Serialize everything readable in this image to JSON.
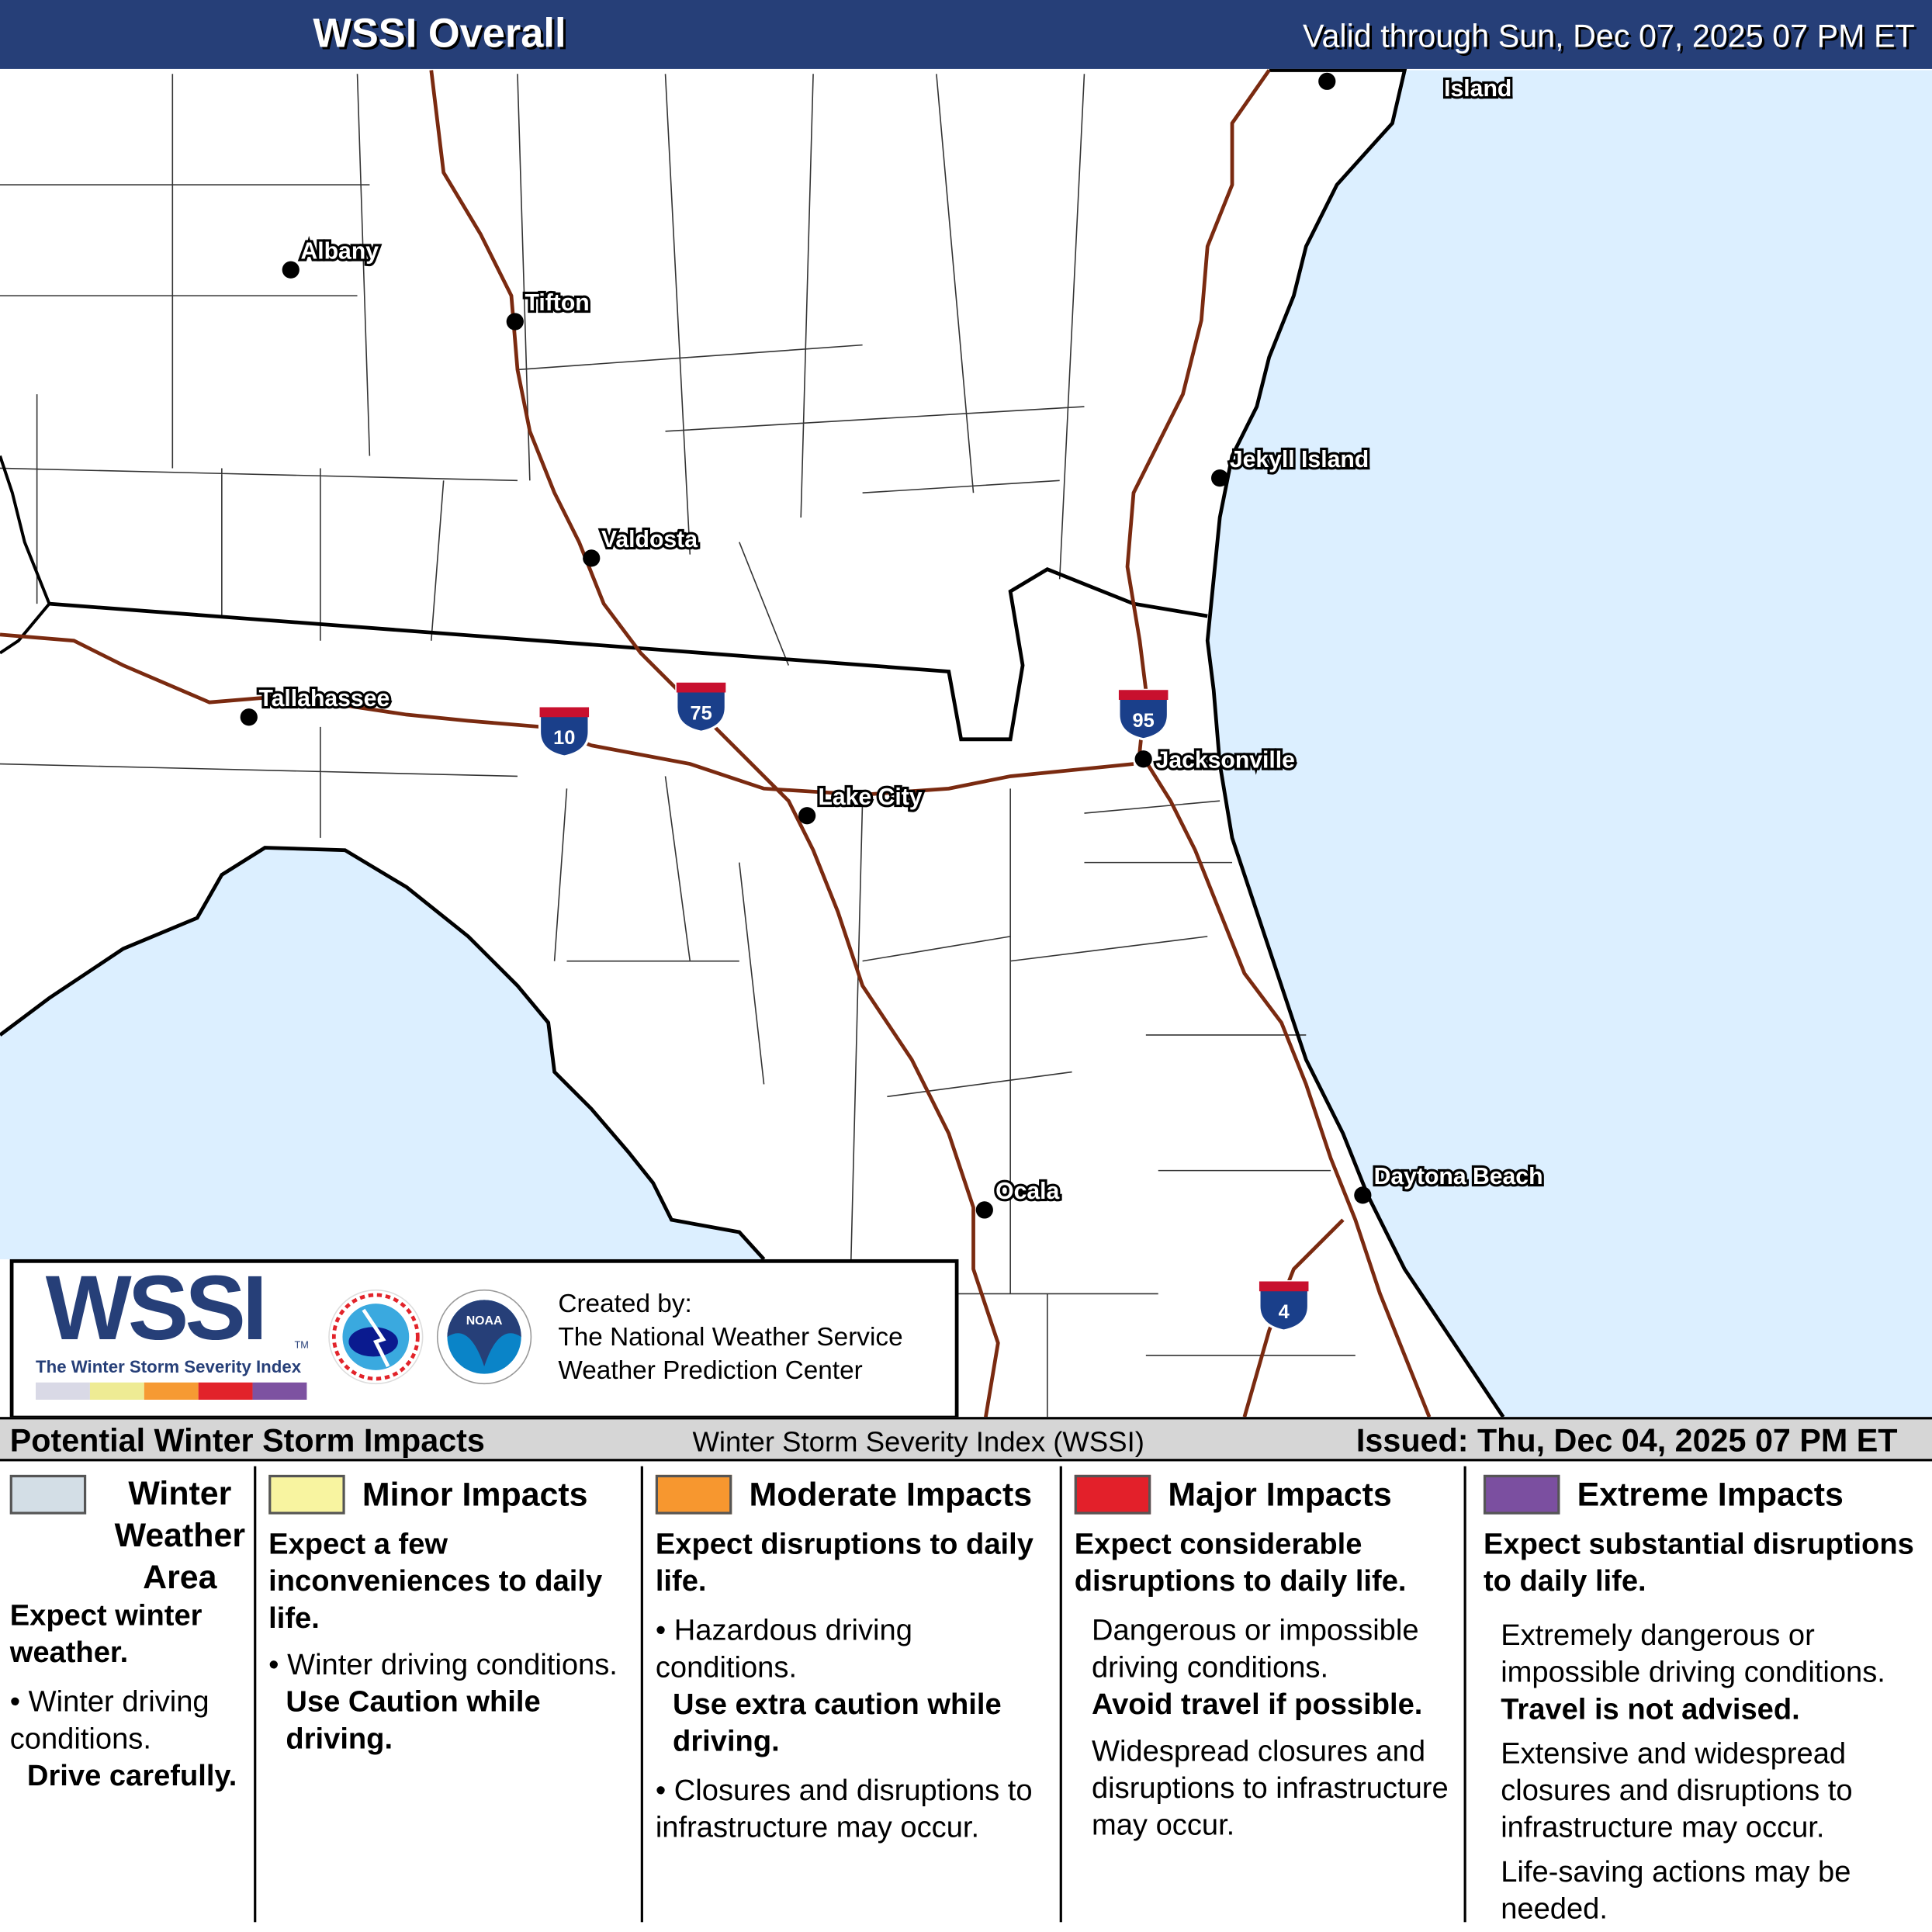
{
  "header": {
    "title": "WSSI Overall",
    "valid": "Valid through Sun, Dec 07, 2025 07 PM ET"
  },
  "map": {
    "colors": {
      "land": "#ffffff",
      "water": "#dcefff",
      "interstate": "#7a2a10",
      "border": "#000000"
    },
    "cities": [
      "Albany",
      "Tifton",
      "Valdosta",
      "Tallahassee",
      "Lake City",
      "Jacksonville",
      "Jekyll Island",
      "Ocala",
      "Daytona Beach",
      "Island"
    ],
    "shields": [
      "10",
      "75",
      "95",
      "4"
    ]
  },
  "logo": {
    "wssi": "WSSI",
    "tm": "TM",
    "subtitle": "The Winter Storm Severity Index",
    "created_by": "Created by:",
    "org1": "The National Weather Service",
    "org2": "Weather Prediction Center",
    "colors": [
      "#d9d9e6",
      "#eeeb94",
      "#f69a33",
      "#e2232a",
      "#7d52a1"
    ]
  },
  "strip": {
    "left": "Potential Winter Storm Impacts",
    "center": "Winter Storm Severity Index (WSSI)",
    "right": "Issued: Thu, Dec 04, 2025 07 PM ET"
  },
  "legend": [
    {
      "title": "Winter Weather Area",
      "color": "#d3dee6",
      "heading": "Expect winter weather.",
      "lines": [
        "• Winter driving conditions.",
        "Drive carefully."
      ]
    },
    {
      "title": "Minor Impacts",
      "color": "#f8f4a0",
      "heading": "Expect a few inconveniences to daily life.",
      "lines": [
        "• Winter driving conditions.",
        "Use Caution while driving."
      ]
    },
    {
      "title": "Moderate Impacts",
      "color": "#f7972f",
      "heading": "Expect disruptions to daily life.",
      "lines": [
        "• Hazardous driving conditions.",
        "Use extra caution while driving.",
        "• Closures and disruptions to infrastructure may occur."
      ]
    },
    {
      "title": "Major Impacts",
      "color": "#e3202a",
      "heading": "Expect considerable disruptions to daily life.",
      "lines": [
        "Dangerous or impossible driving conditions.",
        "Avoid travel if possible.",
        "Widespread closures and disruptions to infrastructure may occur."
      ]
    },
    {
      "title": "Extreme Impacts",
      "color": "#7b4fa0",
      "heading": "Expect substantial disruptions to daily life.",
      "lines": [
        "Extremely dangerous or impossible driving conditions.",
        "Travel is not advised.",
        "Extensive and widespread closures and disruptions to infrastructure may occur.",
        "Life-saving actions may be needed."
      ]
    }
  ]
}
